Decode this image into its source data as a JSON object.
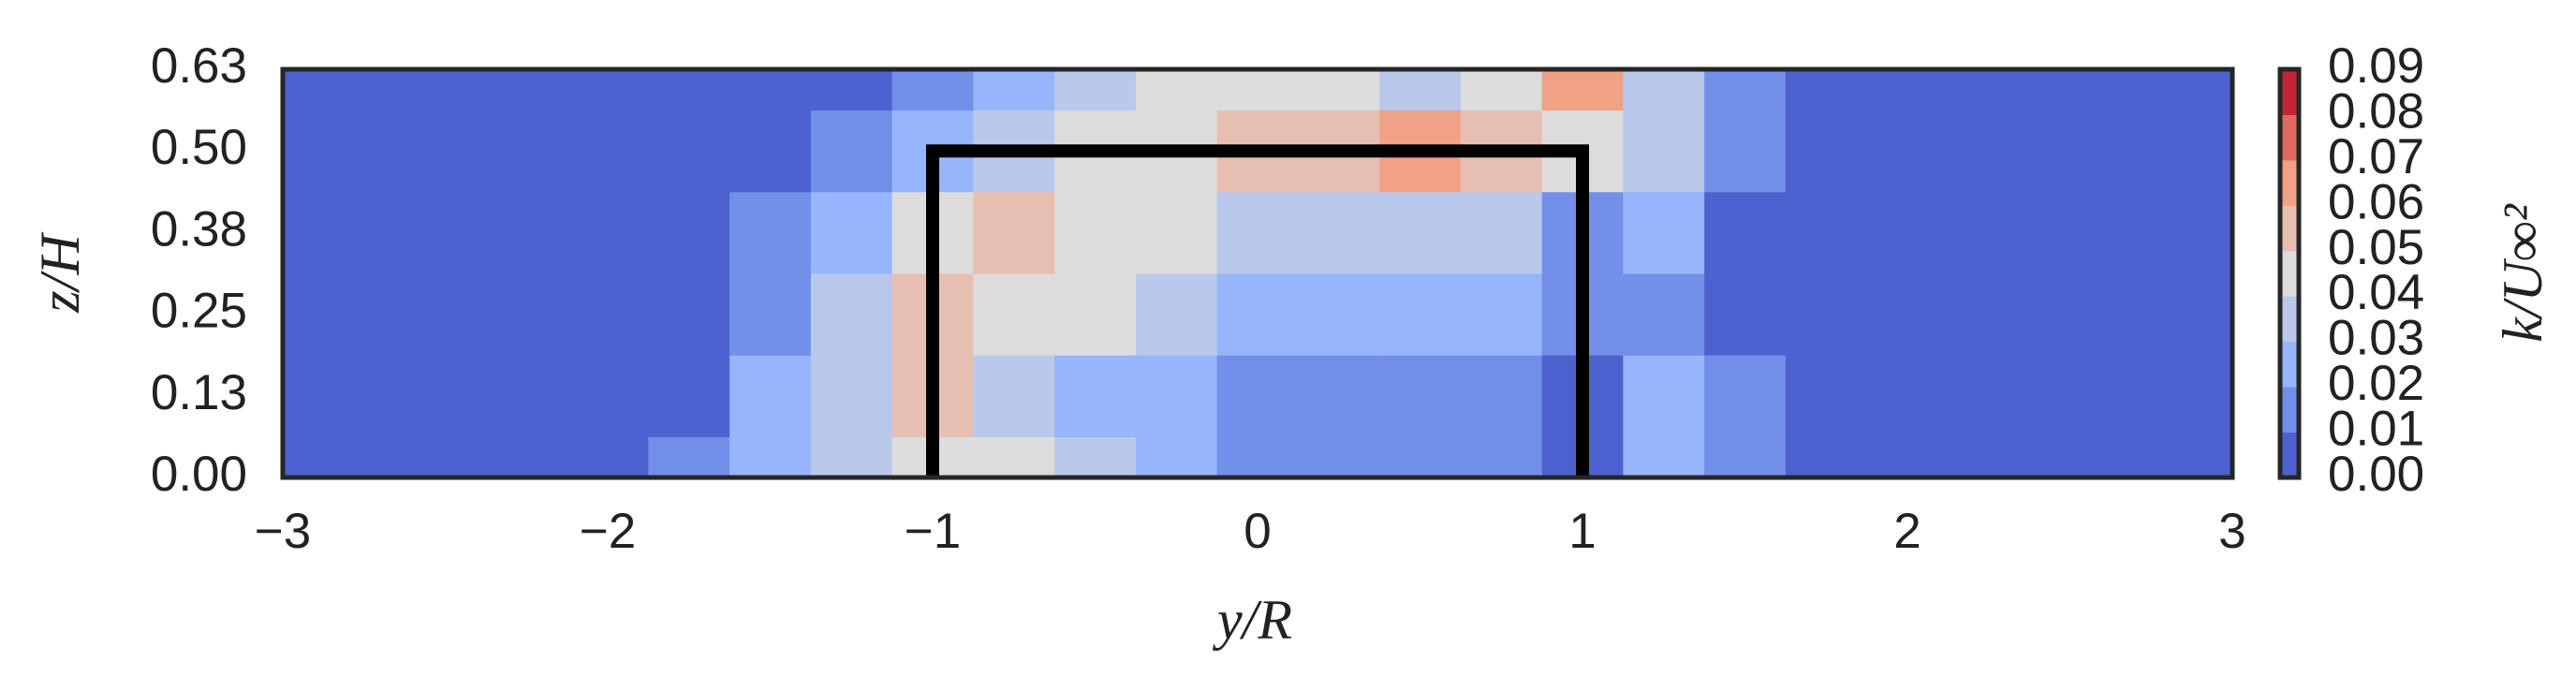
{
  "chart_data": {
    "type": "contour",
    "xlabel": "y/R",
    "ylabel": "z/H",
    "x": [
      -3,
      -2.75,
      -2.5,
      -2.25,
      -2,
      -1.75,
      -1.5,
      -1.25,
      -1,
      -0.75,
      -0.5,
      -0.25,
      0,
      0.25,
      0.5,
      0.75,
      1,
      1.25,
      1.5,
      1.75,
      2,
      2.25,
      2.5,
      2.75,
      3
    ],
    "y": [
      0,
      0.125,
      0.25,
      0.375,
      0.5,
      0.625
    ],
    "values": [
      [
        0.005,
        0.005,
        0.005,
        0.008,
        0.005,
        0.015,
        0.02,
        0.035,
        0.045,
        0.04,
        0.03,
        0.02,
        0.015,
        0.015,
        0.015,
        0.01,
        0.008,
        0.02,
        0.01,
        0.005,
        0.005,
        0.008,
        0.005,
        0.005,
        0.005
      ],
      [
        0.005,
        0.005,
        0.005,
        0.008,
        0.005,
        0.005,
        0.02,
        0.035,
        0.05,
        0.035,
        0.025,
        0.02,
        0.015,
        0.015,
        0.015,
        0.015,
        0.008,
        0.02,
        0.01,
        0.005,
        0.005,
        0.005,
        0.005,
        0.005,
        0.005
      ],
      [
        0.005,
        0.005,
        0.005,
        0.005,
        0.005,
        0.005,
        0.015,
        0.03,
        0.055,
        0.045,
        0.04,
        0.03,
        0.025,
        0.025,
        0.02,
        0.02,
        0.015,
        0.015,
        0.008,
        0.005,
        0.005,
        0.005,
        0.008,
        0.005,
        0.005
      ],
      [
        0.005,
        0.005,
        0.005,
        0.005,
        0.005,
        0.005,
        0.01,
        0.025,
        0.04,
        0.05,
        0.045,
        0.04,
        0.035,
        0.035,
        0.035,
        0.03,
        0.015,
        0.02,
        0.008,
        0.005,
        0.005,
        0.005,
        0.005,
        0.005,
        0.005
      ],
      [
        0.005,
        0.005,
        0.008,
        0.005,
        0.005,
        0.005,
        0.005,
        0.01,
        0.02,
        0.035,
        0.045,
        0.045,
        0.05,
        0.055,
        0.065,
        0.055,
        0.04,
        0.03,
        0.01,
        0.005,
        0.005,
        0.005,
        0.005,
        0.005,
        0.005
      ],
      [
        0.005,
        0.005,
        0.005,
        0.005,
        0.005,
        0.005,
        0.005,
        0.005,
        0.01,
        0.025,
        0.035,
        0.045,
        0.045,
        0.04,
        0.03,
        0.045,
        0.06,
        0.03,
        0.01,
        0.005,
        0.005,
        0.005,
        0.005,
        0.005,
        0.005
      ]
    ],
    "xlim": [
      -3,
      3
    ],
    "ylim": [
      0,
      0.625
    ],
    "xticks": [
      {
        "value": -3,
        "label": "−3"
      },
      {
        "value": -2,
        "label": "−2"
      },
      {
        "value": -1,
        "label": "−1"
      },
      0,
      1,
      2,
      3
    ],
    "yticks": [
      {
        "value": 0,
        "label": "0.00"
      },
      {
        "value": 0.125,
        "label": "0.13"
      },
      {
        "value": 0.25,
        "label": "0.25"
      },
      {
        "value": 0.375,
        "label": "0.38"
      },
      {
        "value": 0.5,
        "label": "0.50"
      },
      {
        "value": 0.625,
        "label": "0.63"
      }
    ],
    "colormap": [
      "#3b4cc0",
      "#8db0fe",
      "#dddcdc",
      "#f49a7b",
      "#b40426"
    ],
    "outline": {
      "x": [
        -1,
        -1,
        1,
        1
      ],
      "y": [
        0,
        0.5,
        0.5,
        0
      ],
      "color": "#000000"
    },
    "colorbar": {
      "label": "k/U∞²",
      "lim": [
        0,
        0.09
      ],
      "ticks": [
        {
          "value": 0,
          "label": "0.00"
        },
        {
          "value": 0.01,
          "label": "0.01"
        },
        {
          "value": 0.02,
          "label": "0.02"
        },
        {
          "value": 0.03,
          "label": "0.03"
        },
        {
          "value": 0.04,
          "label": "0.04"
        },
        {
          "value": 0.05,
          "label": "0.05"
        },
        {
          "value": 0.06,
          "label": "0.06"
        },
        {
          "value": 0.07,
          "label": "0.07"
        },
        {
          "value": 0.08,
          "label": "0.08"
        },
        {
          "value": 0.09,
          "label": "0.09"
        }
      ]
    }
  }
}
